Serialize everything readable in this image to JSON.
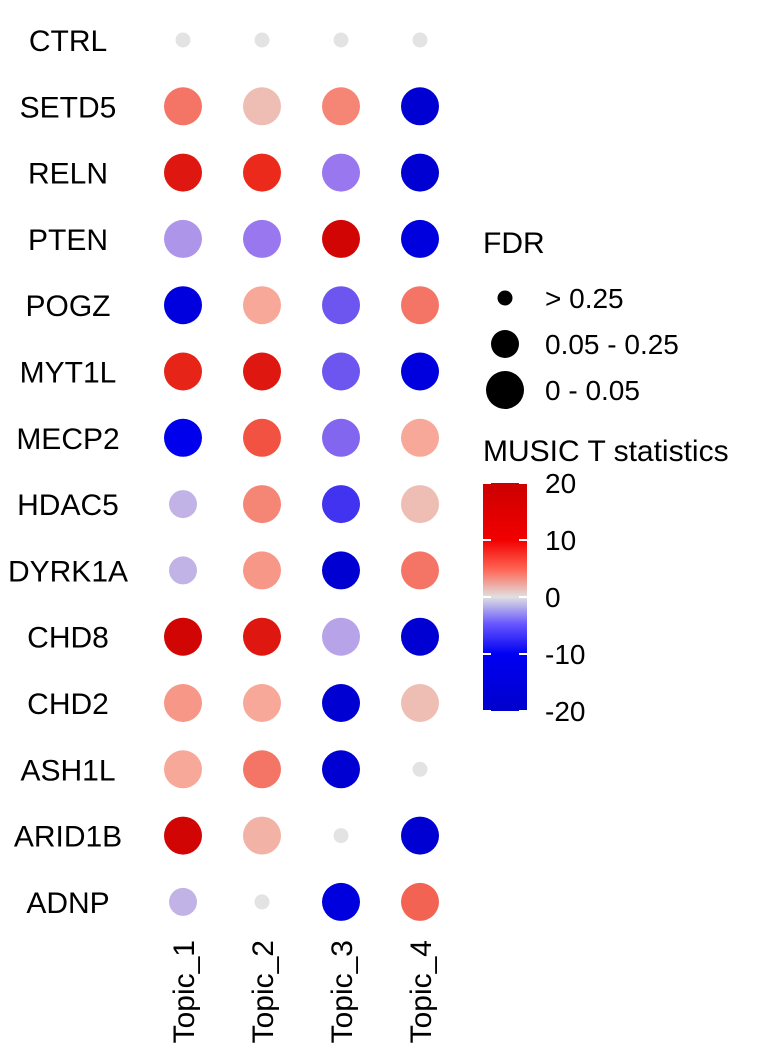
{
  "chart_data": {
    "type": "dotplot",
    "genes": [
      "CTRL",
      "SETD5",
      "RELN",
      "PTEN",
      "POGZ",
      "MYT1L",
      "MECP2",
      "HDAC5",
      "DYRK1A",
      "CHD8",
      "CHD2",
      "ASH1L",
      "ARID1B",
      "ADNP"
    ],
    "topics": [
      "Topic_1",
      "Topic_2",
      "Topic_3",
      "Topic_4"
    ],
    "points": [
      {
        "gene": "CTRL",
        "topic": "Topic_1",
        "t": 0,
        "fdr": "> 0.25"
      },
      {
        "gene": "CTRL",
        "topic": "Topic_2",
        "t": 0,
        "fdr": "> 0.25"
      },
      {
        "gene": "CTRL",
        "topic": "Topic_3",
        "t": 0,
        "fdr": "> 0.25"
      },
      {
        "gene": "CTRL",
        "topic": "Topic_4",
        "t": 0,
        "fdr": "> 0.25"
      },
      {
        "gene": "SETD5",
        "topic": "Topic_1",
        "t": 8,
        "fdr": "0 - 0.05"
      },
      {
        "gene": "SETD5",
        "topic": "Topic_2",
        "t": 3,
        "fdr": "0 - 0.05"
      },
      {
        "gene": "SETD5",
        "topic": "Topic_3",
        "t": 7,
        "fdr": "0 - 0.05"
      },
      {
        "gene": "SETD5",
        "topic": "Topic_4",
        "t": -19,
        "fdr": "0 - 0.05"
      },
      {
        "gene": "RELN",
        "topic": "Topic_1",
        "t": 16,
        "fdr": "0 - 0.05"
      },
      {
        "gene": "RELN",
        "topic": "Topic_2",
        "t": 13,
        "fdr": "0 - 0.05"
      },
      {
        "gene": "RELN",
        "topic": "Topic_3",
        "t": -7,
        "fdr": "0 - 0.05"
      },
      {
        "gene": "RELN",
        "topic": "Topic_4",
        "t": -19,
        "fdr": "0 - 0.05"
      },
      {
        "gene": "PTEN",
        "topic": "Topic_1",
        "t": -5,
        "fdr": "0 - 0.05"
      },
      {
        "gene": "PTEN",
        "topic": "Topic_2",
        "t": -7,
        "fdr": "0 - 0.05"
      },
      {
        "gene": "PTEN",
        "topic": "Topic_3",
        "t": 19,
        "fdr": "0 - 0.05"
      },
      {
        "gene": "PTEN",
        "topic": "Topic_4",
        "t": -17,
        "fdr": "0 - 0.05"
      },
      {
        "gene": "POGZ",
        "topic": "Topic_1",
        "t": -17,
        "fdr": "0 - 0.05"
      },
      {
        "gene": "POGZ",
        "topic": "Topic_2",
        "t": 5,
        "fdr": "0 - 0.05"
      },
      {
        "gene": "POGZ",
        "topic": "Topic_3",
        "t": -9,
        "fdr": "0 - 0.05"
      },
      {
        "gene": "POGZ",
        "topic": "Topic_4",
        "t": 8,
        "fdr": "0 - 0.05"
      },
      {
        "gene": "MYT1L",
        "topic": "Topic_1",
        "t": 14,
        "fdr": "0 - 0.05"
      },
      {
        "gene": "MYT1L",
        "topic": "Topic_2",
        "t": 16,
        "fdr": "0 - 0.05"
      },
      {
        "gene": "MYT1L",
        "topic": "Topic_3",
        "t": -9,
        "fdr": "0 - 0.05"
      },
      {
        "gene": "MYT1L",
        "topic": "Topic_4",
        "t": -17,
        "fdr": "0 - 0.05"
      },
      {
        "gene": "MECP2",
        "topic": "Topic_1",
        "t": -15,
        "fdr": "0 - 0.05"
      },
      {
        "gene": "MECP2",
        "topic": "Topic_2",
        "t": 10,
        "fdr": "0 - 0.05"
      },
      {
        "gene": "MECP2",
        "topic": "Topic_3",
        "t": -8,
        "fdr": "0 - 0.05"
      },
      {
        "gene": "MECP2",
        "topic": "Topic_4",
        "t": 5,
        "fdr": "0 - 0.05"
      },
      {
        "gene": "HDAC5",
        "topic": "Topic_1",
        "t": -3,
        "fdr": "0.05 - 0.25"
      },
      {
        "gene": "HDAC5",
        "topic": "Topic_2",
        "t": 7,
        "fdr": "0 - 0.05"
      },
      {
        "gene": "HDAC5",
        "topic": "Topic_3",
        "t": -11,
        "fdr": "0 - 0.05"
      },
      {
        "gene": "HDAC5",
        "topic": "Topic_4",
        "t": 3,
        "fdr": "0 - 0.05"
      },
      {
        "gene": "DYRK1A",
        "topic": "Topic_1",
        "t": -3,
        "fdr": "0.05 - 0.25"
      },
      {
        "gene": "DYRK1A",
        "topic": "Topic_2",
        "t": 6,
        "fdr": "0 - 0.05"
      },
      {
        "gene": "DYRK1A",
        "topic": "Topic_3",
        "t": -19,
        "fdr": "0 - 0.05"
      },
      {
        "gene": "DYRK1A",
        "topic": "Topic_4",
        "t": 8,
        "fdr": "0 - 0.05"
      },
      {
        "gene": "CHD8",
        "topic": "Topic_1",
        "t": 19,
        "fdr": "0 - 0.05"
      },
      {
        "gene": "CHD8",
        "topic": "Topic_2",
        "t": 16,
        "fdr": "0 - 0.05"
      },
      {
        "gene": "CHD8",
        "topic": "Topic_3",
        "t": -4,
        "fdr": "0 - 0.05"
      },
      {
        "gene": "CHD8",
        "topic": "Topic_4",
        "t": -19,
        "fdr": "0 - 0.05"
      },
      {
        "gene": "CHD2",
        "topic": "Topic_1",
        "t": 6,
        "fdr": "0 - 0.05"
      },
      {
        "gene": "CHD2",
        "topic": "Topic_2",
        "t": 5,
        "fdr": "0 - 0.05"
      },
      {
        "gene": "CHD2",
        "topic": "Topic_3",
        "t": -19,
        "fdr": "0 - 0.05"
      },
      {
        "gene": "CHD2",
        "topic": "Topic_4",
        "t": 3,
        "fdr": "0 - 0.05"
      },
      {
        "gene": "ASH1L",
        "topic": "Topic_1",
        "t": 5,
        "fdr": "0 - 0.05"
      },
      {
        "gene": "ASH1L",
        "topic": "Topic_2",
        "t": 8,
        "fdr": "0 - 0.05"
      },
      {
        "gene": "ASH1L",
        "topic": "Topic_3",
        "t": -19,
        "fdr": "0 - 0.05"
      },
      {
        "gene": "ASH1L",
        "topic": "Topic_4",
        "t": 0,
        "fdr": "> 0.25"
      },
      {
        "gene": "ARID1B",
        "topic": "Topic_1",
        "t": 19,
        "fdr": "0 - 0.05"
      },
      {
        "gene": "ARID1B",
        "topic": "Topic_2",
        "t": 4,
        "fdr": "0 - 0.05"
      },
      {
        "gene": "ARID1B",
        "topic": "Topic_3",
        "t": 0,
        "fdr": "> 0.25"
      },
      {
        "gene": "ARID1B",
        "topic": "Topic_4",
        "t": -19,
        "fdr": "0 - 0.05"
      },
      {
        "gene": "ADNP",
        "topic": "Topic_1",
        "t": -3,
        "fdr": "0.05 - 0.25"
      },
      {
        "gene": "ADNP",
        "topic": "Topic_2",
        "t": 0,
        "fdr": "> 0.25"
      },
      {
        "gene": "ADNP",
        "topic": "Topic_3",
        "t": -17,
        "fdr": "0 - 0.05"
      },
      {
        "gene": "ADNP",
        "topic": "Topic_4",
        "t": 9,
        "fdr": "0 - 0.05"
      }
    ],
    "legend_size": {
      "title": "FDR",
      "levels": [
        {
          "label": "> 0.25"
        },
        {
          "label": "0.05 - 0.25"
        },
        {
          "label": "0 - 0.05"
        }
      ]
    },
    "legend_color": {
      "title": "MUSIC T statistics",
      "range": [
        -20,
        20
      ],
      "ticks": [
        20,
        10,
        0,
        -10,
        -20
      ],
      "colors": {
        "low": "#0000cc",
        "mid": "#e0e0e0",
        "high": "#cc0000"
      }
    }
  }
}
